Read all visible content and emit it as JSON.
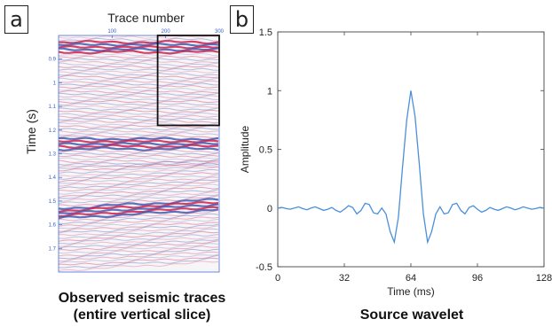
{
  "panels": {
    "a": {
      "letter": "a",
      "caption_line1": "Observed seismic traces",
      "caption_line2": "(entire vertical slice)"
    },
    "b": {
      "letter": "b",
      "caption": "Source wavelet"
    }
  },
  "chart_data": [
    {
      "type": "heatmap",
      "xlabel": "Trace number",
      "ylabel": "Time (s)",
      "xticks": [
        "100",
        "200",
        "300"
      ],
      "x_tick_values": [
        100,
        200,
        300
      ],
      "yticks": [
        "0.9",
        "1",
        "1.1",
        "1.2",
        "1.3",
        "1.4",
        "1.5",
        "1.6",
        "1.7"
      ],
      "y_tick_values": [
        0.9,
        1.0,
        1.1,
        1.2,
        1.3,
        1.4,
        1.5,
        1.6,
        1.7
      ],
      "xlim": [
        0,
        300
      ],
      "ylim": [
        0.8,
        1.8
      ],
      "colors": {
        "positive": "#d21e4b",
        "negative": "#3c5ab4",
        "box": "#111111"
      },
      "highlight_box": {
        "x": [
          185,
          300
        ],
        "y": [
          0.8,
          1.18
        ]
      }
    },
    {
      "type": "line",
      "xlabel": "Time (ms)",
      "ylabel": "Amplitude",
      "xticks": [
        "0",
        "32",
        "64",
        "96",
        "128"
      ],
      "x_tick_values": [
        0,
        32,
        64,
        96,
        128
      ],
      "yticks": [
        "-0.5",
        "0",
        "0.5",
        "1",
        "1.5"
      ],
      "y_tick_values": [
        -0.5,
        0,
        0.5,
        1,
        1.5
      ],
      "xlim": [
        0,
        128
      ],
      "ylim": [
        -0.5,
        1.5
      ],
      "line_color": "#4a90d9",
      "x": [
        0,
        2,
        4,
        6,
        8,
        10,
        12,
        14,
        16,
        18,
        20,
        22,
        24,
        26,
        28,
        30,
        32,
        34,
        36,
        38,
        40,
        42,
        44,
        46,
        48,
        50,
        52,
        54,
        56,
        58,
        60,
        62,
        64,
        66,
        68,
        70,
        72,
        74,
        76,
        78,
        80,
        82,
        84,
        86,
        88,
        90,
        92,
        94,
        96,
        98,
        100,
        102,
        104,
        106,
        108,
        110,
        112,
        114,
        116,
        118,
        120,
        122,
        124,
        126,
        128
      ],
      "y": [
        0,
        0.005,
        -0.005,
        -0.01,
        0,
        0.01,
        -0.005,
        -0.015,
        0,
        0.01,
        -0.005,
        -0.02,
        -0.01,
        0.005,
        -0.02,
        -0.035,
        -0.01,
        0.02,
        0.005,
        -0.05,
        -0.02,
        0.04,
        0.03,
        -0.04,
        -0.05,
        0,
        -0.05,
        -0.2,
        -0.29,
        -0.08,
        0.35,
        0.75,
        1.0,
        0.78,
        0.38,
        -0.05,
        -0.29,
        -0.2,
        -0.05,
        0.01,
        -0.05,
        -0.04,
        0.03,
        0.04,
        -0.02,
        -0.05,
        0.005,
        0.02,
        -0.01,
        -0.035,
        -0.02,
        0.005,
        -0.01,
        -0.02,
        -0.005,
        0.01,
        0,
        -0.015,
        -0.005,
        0.01,
        0,
        -0.01,
        -0.005,
        0.005,
        0
      ]
    }
  ]
}
